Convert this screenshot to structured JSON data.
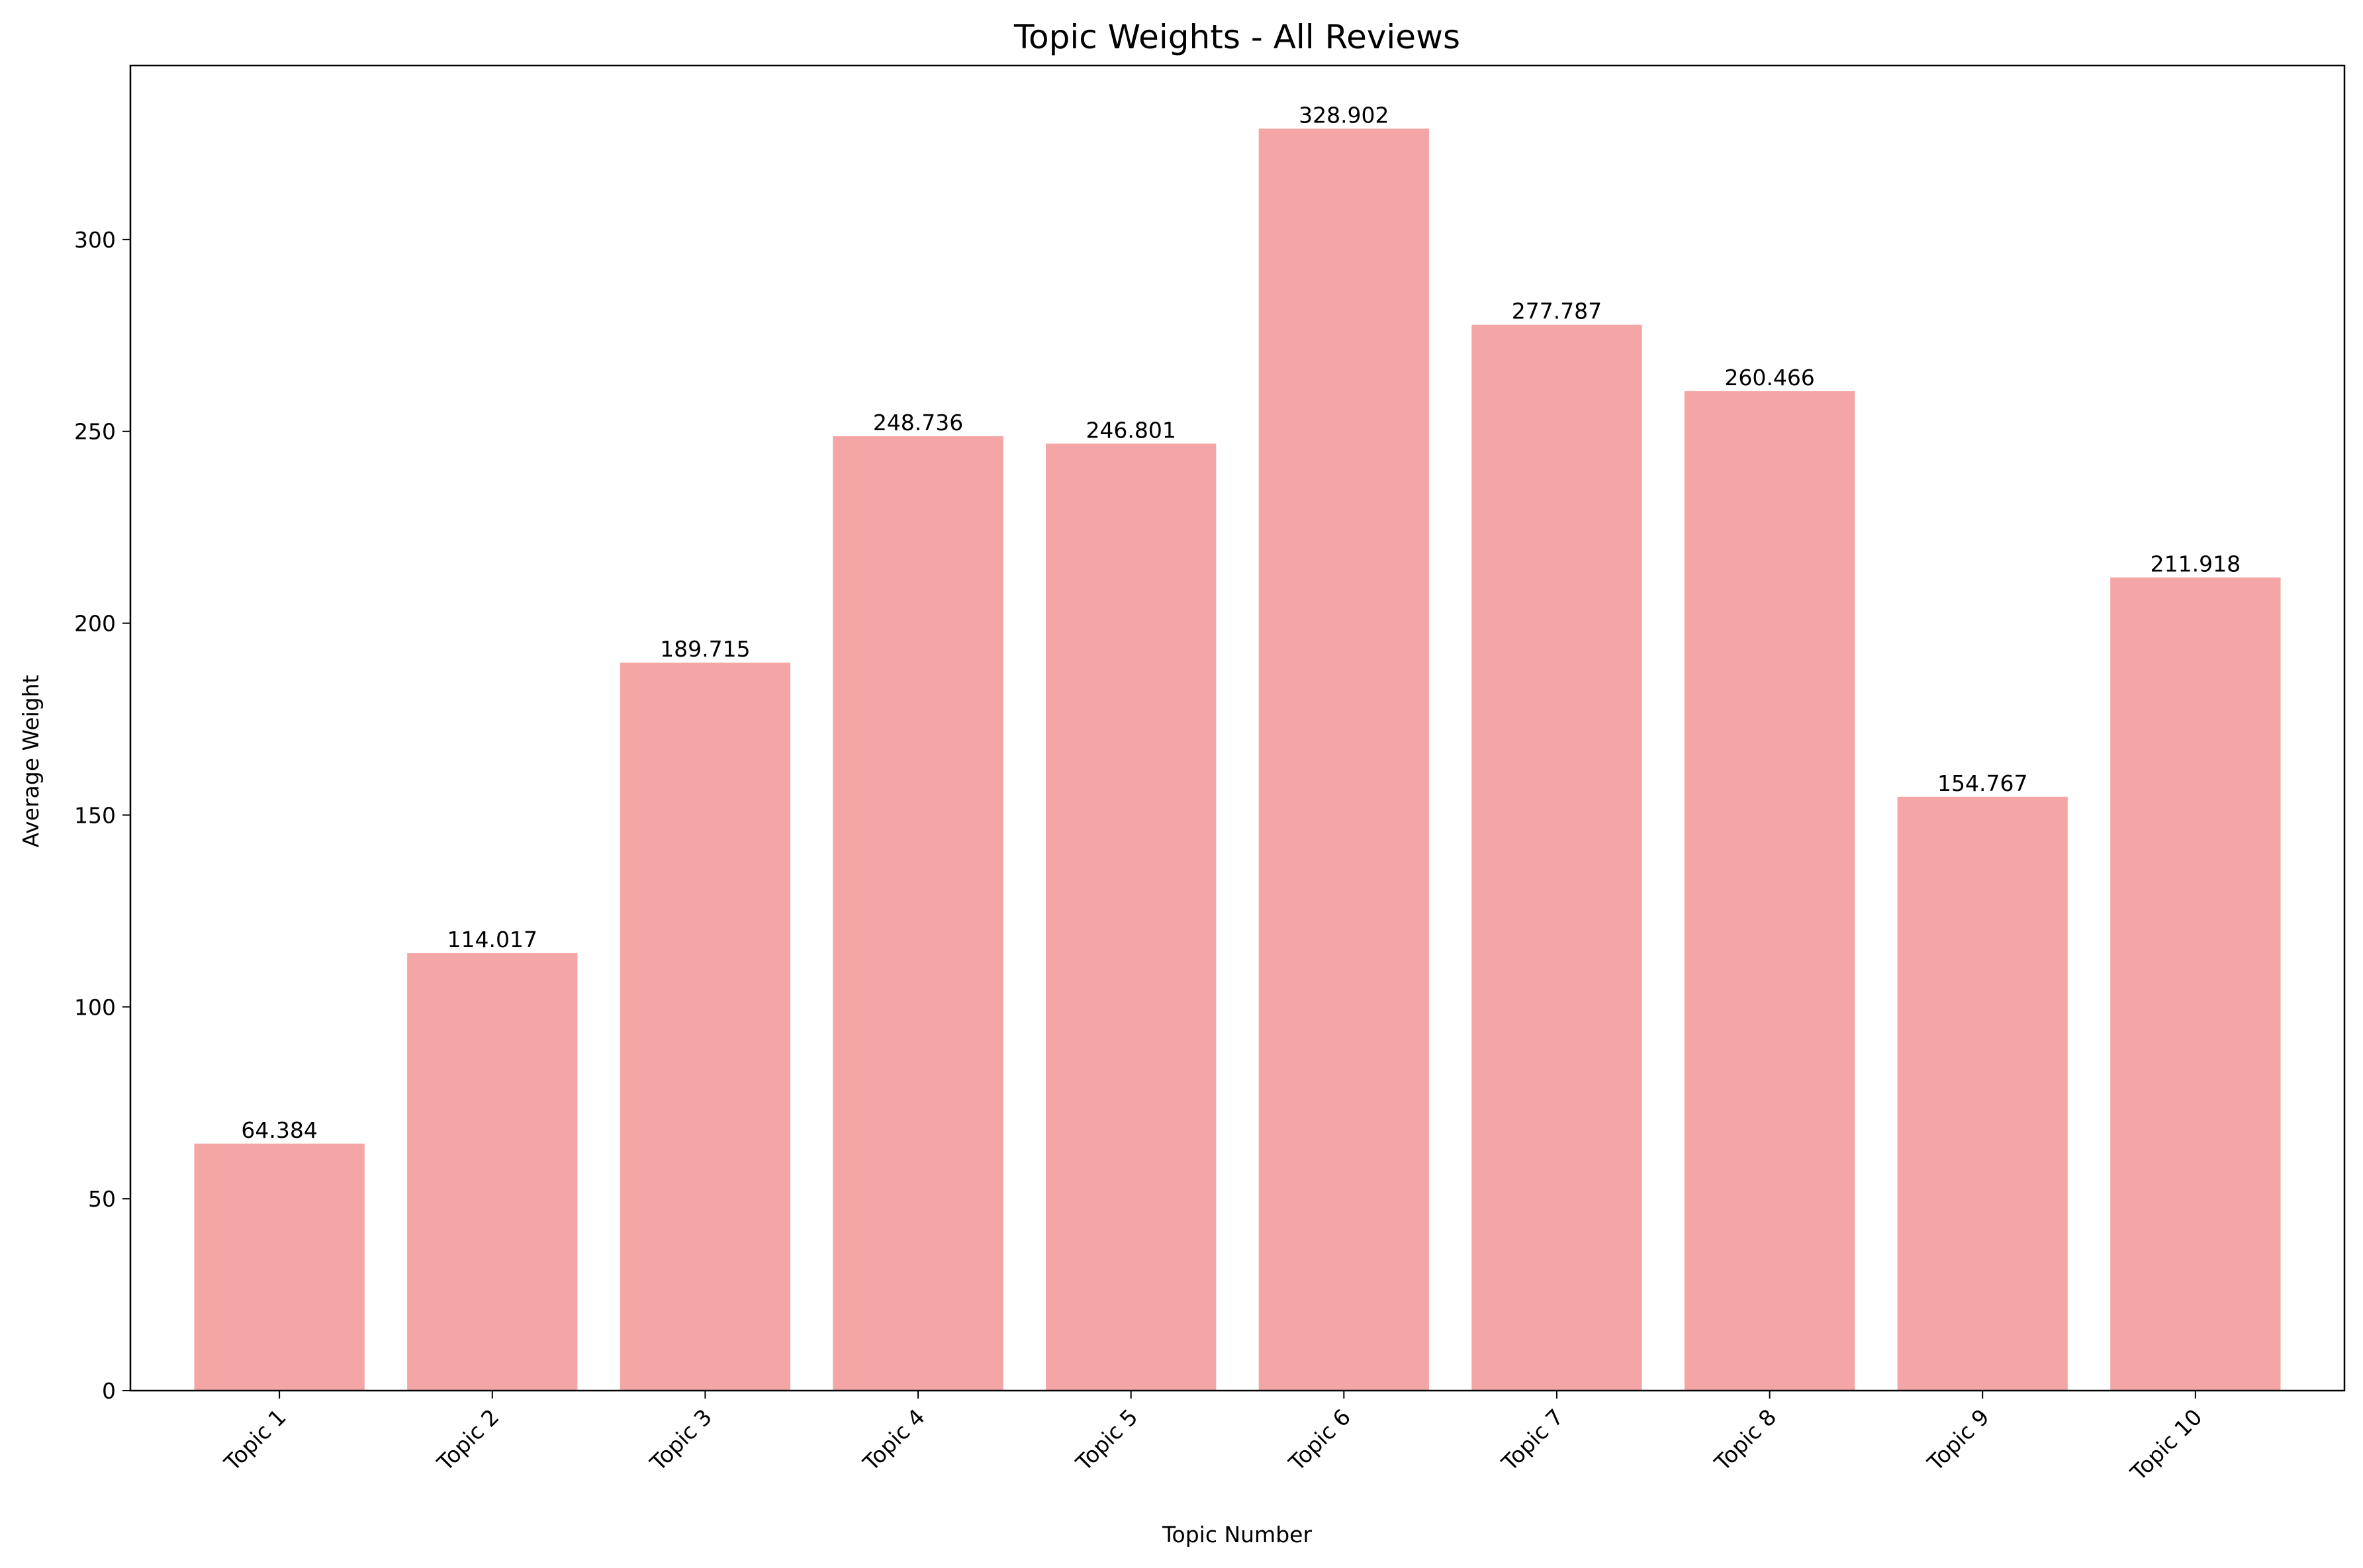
{
  "chart_data": {
    "type": "bar",
    "title": "Topic Weights - All Reviews",
    "xlabel": "Topic Number",
    "ylabel": "Average Weight",
    "categories": [
      "Topic 1",
      "Topic 2",
      "Topic 3",
      "Topic 4",
      "Topic 5",
      "Topic 6",
      "Topic 7",
      "Topic 8",
      "Topic 9",
      "Topic 10"
    ],
    "values": [
      64.384,
      114.017,
      189.715,
      248.736,
      246.801,
      328.902,
      277.787,
      260.466,
      154.767,
      211.918
    ],
    "value_labels": [
      "64.384",
      "114.017",
      "189.715",
      "248.736",
      "246.801",
      "328.902",
      "277.787",
      "260.466",
      "154.767",
      "211.918"
    ],
    "ylim": [
      0,
      345.35
    ],
    "yticks": [
      0,
      50,
      100,
      150,
      200,
      250,
      300
    ],
    "grid": false,
    "legend": "none",
    "bar_color": "#f4a6a6",
    "tick_label_rotation": 45
  }
}
